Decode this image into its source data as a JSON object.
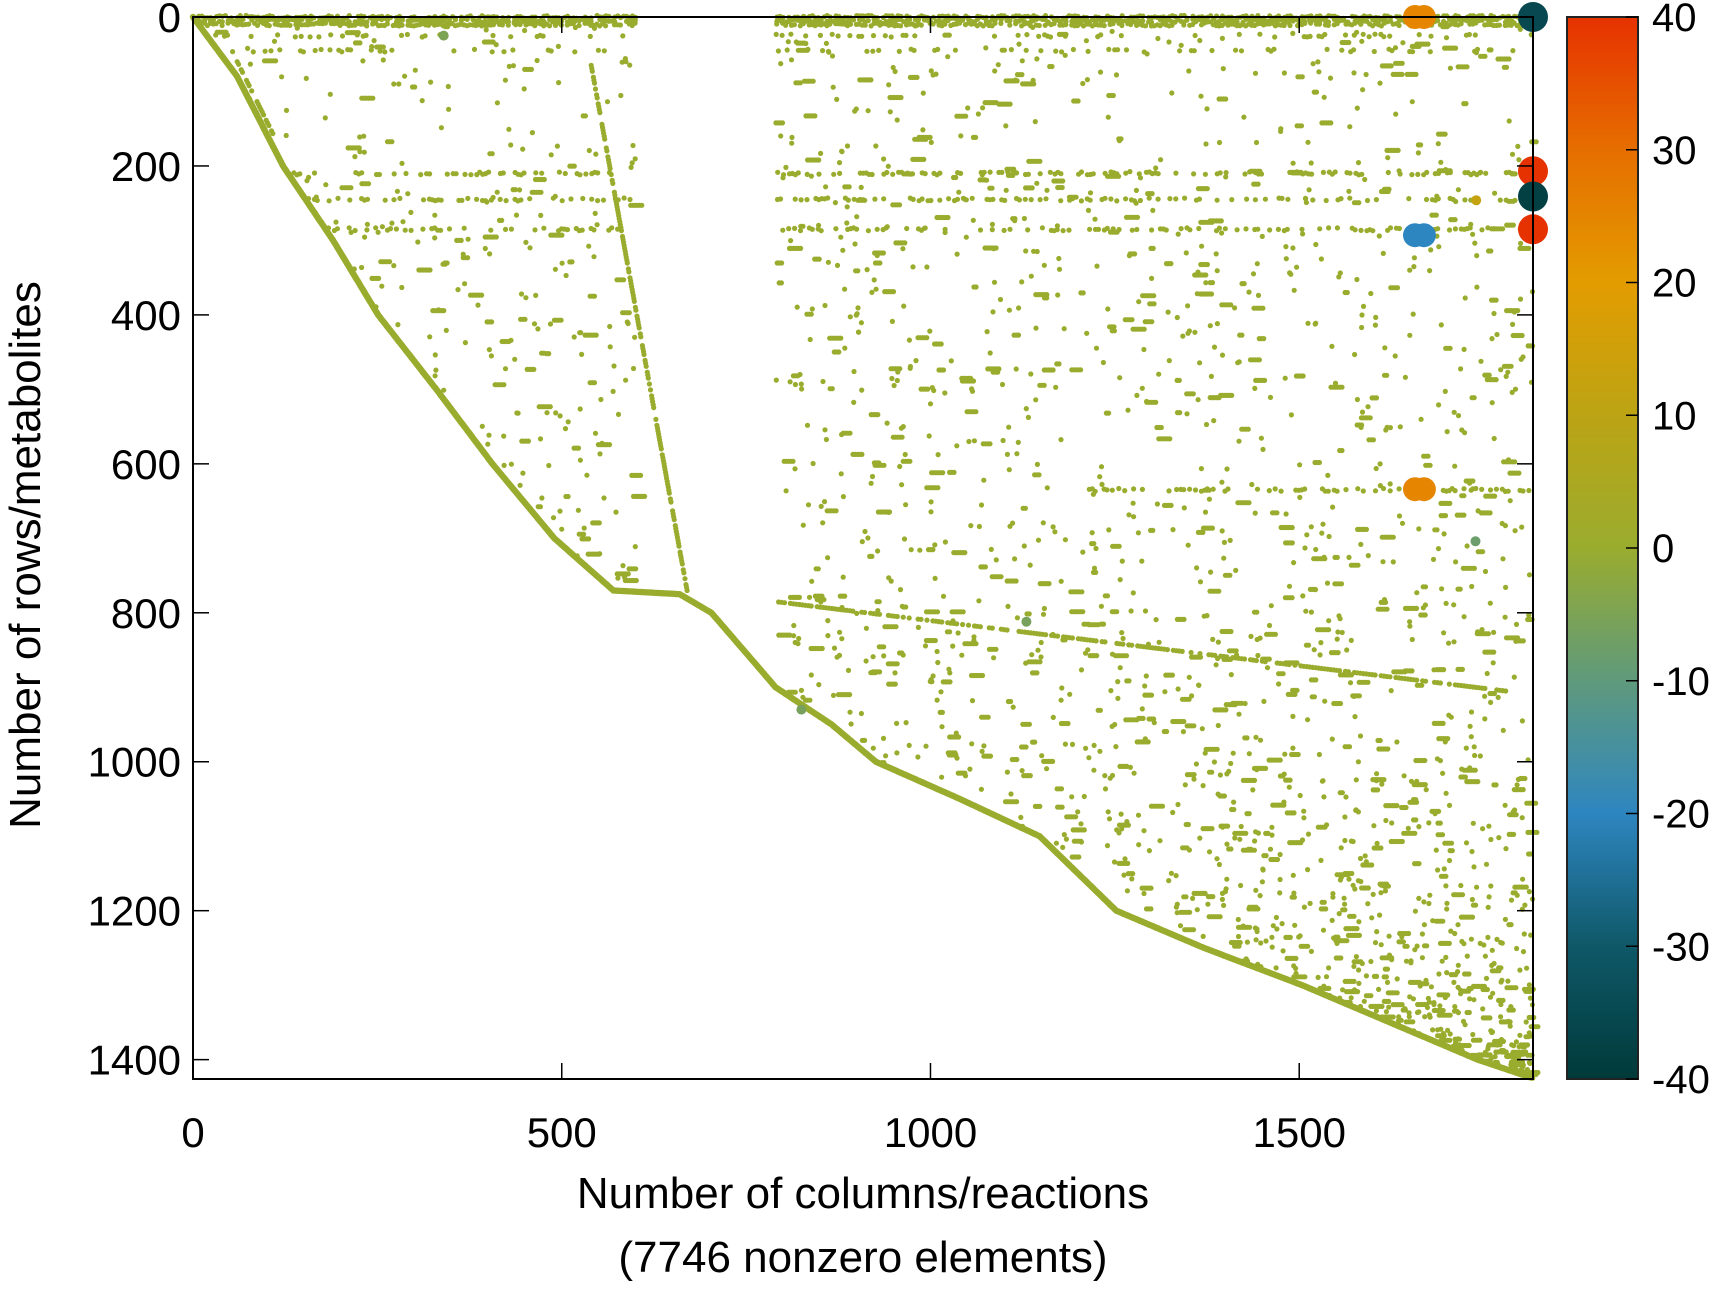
{
  "chart_data": {
    "type": "scatter",
    "subtype": "sparse-matrix-spy-plot",
    "xlabel": "Number of columns/reactions",
    "xlabel_note": "(7746 nonzero elements)",
    "ylabel": "Number of rows/metabolites",
    "xlim": [
      0,
      1817
    ],
    "ylim": [
      1426,
      0
    ],
    "y_axis_inverted": true,
    "x_ticks": [
      0,
      500,
      1000,
      1500
    ],
    "y_ticks": [
      0,
      200,
      400,
      600,
      800,
      1000,
      1200,
      1400
    ],
    "grid": false,
    "nonzero_count": 7746,
    "default_value": 0,
    "colorbar": {
      "range": [
        -40,
        40
      ],
      "ticks": [
        40,
        30,
        20,
        10,
        0,
        -10,
        -20,
        -30,
        -40
      ],
      "colormap": [
        {
          "v": -40,
          "color": "#003a3a"
        },
        {
          "v": -30,
          "color": "#0f5868"
        },
        {
          "v": -20,
          "color": "#2e86c0"
        },
        {
          "v": -10,
          "color": "#5f9a7c"
        },
        {
          "v": 0,
          "color": "#9aac2e"
        },
        {
          "v": 10,
          "color": "#bca414"
        },
        {
          "v": 20,
          "color": "#e39c00"
        },
        {
          "v": 30,
          "color": "#e66e00"
        },
        {
          "v": 40,
          "color": "#e63200"
        }
      ]
    },
    "diagonal_profile": [
      [
        0,
        0
      ],
      [
        60,
        80
      ],
      [
        122,
        200
      ],
      [
        190,
        300
      ],
      [
        251,
        400
      ],
      [
        330,
        500
      ],
      [
        406,
        600
      ],
      [
        490,
        700
      ],
      [
        570,
        770
      ],
      [
        660,
        775
      ],
      [
        703,
        800
      ],
      [
        790,
        900
      ],
      [
        866,
        950
      ],
      [
        926,
        1000
      ],
      [
        1040,
        1050
      ],
      [
        1148,
        1100
      ],
      [
        1252,
        1200
      ],
      [
        1371,
        1250
      ],
      [
        1504,
        1300
      ],
      [
        1623,
        1350
      ],
      [
        1742,
        1400
      ],
      [
        1817,
        1425
      ]
    ],
    "secondary_diagonals": [
      {
        "from": [
          540,
          65
        ],
        "to": [
          670,
          770
        ]
      },
      {
        "from": [
          790,
          785
        ],
        "to": [
          1780,
          905
        ]
      },
      {
        "from": [
          60,
          60
        ],
        "to": [
          110,
          160
        ]
      }
    ],
    "dense_rows": [
      0,
      5,
      10,
      25,
      45,
      210,
      245,
      285,
      635
    ],
    "empty_column_range": [
      600,
      790
    ],
    "large_entries": [
      {
        "col": 1663,
        "row": 0,
        "value": 25
      },
      {
        "col": 1817,
        "row": 0,
        "value": -35
      },
      {
        "col": 1817,
        "row": 207,
        "value": 40
      },
      {
        "col": 1817,
        "row": 241,
        "value": -38
      },
      {
        "col": 1817,
        "row": 285,
        "value": 40
      },
      {
        "col": 1663,
        "row": 293,
        "value": -20
      },
      {
        "col": 1663,
        "row": 634,
        "value": 25
      },
      {
        "col": 1739,
        "row": 704,
        "value": -8
      },
      {
        "col": 1740,
        "row": 246,
        "value": 12
      },
      {
        "col": 340,
        "row": 25,
        "value": -5
      },
      {
        "col": 1130,
        "row": 812,
        "value": -6
      },
      {
        "col": 825,
        "row": 930,
        "value": -6
      }
    ]
  }
}
